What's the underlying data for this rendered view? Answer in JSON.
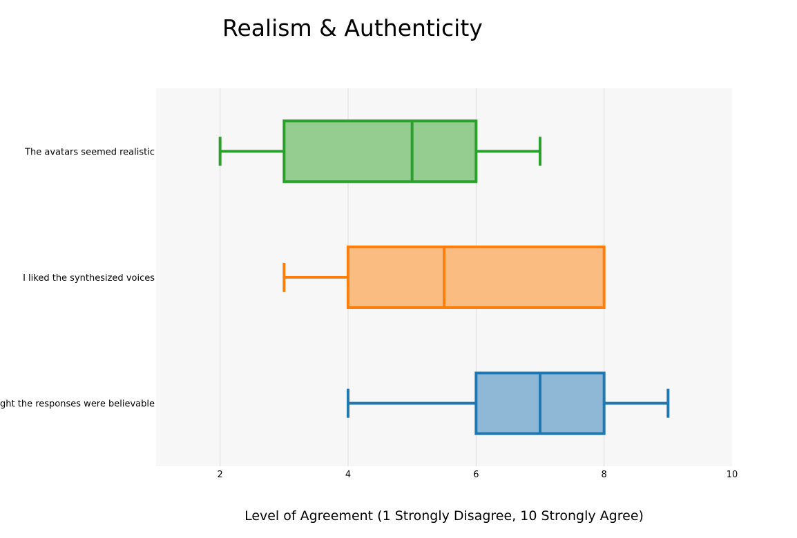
{
  "chart_data": {
    "type": "box",
    "orientation": "horizontal",
    "title": "Realism & Authenticity",
    "xlabel": "Level of Agreement (1 Strongly Disagree, 10 Strongly Agree)",
    "ylabel": "",
    "xlim": [
      1,
      10
    ],
    "x_ticks": [
      2,
      4,
      6,
      8,
      10
    ],
    "grid": "vertical",
    "legend": "none",
    "plot_background": "#f7f7f7",
    "series": [
      {
        "category": "The avatars seemed realistic",
        "color": "#2ca02c",
        "fill": "#94cd8f",
        "min": 2,
        "q1": 3,
        "median": 5,
        "q3": 6,
        "max": 7
      },
      {
        "category": "I liked the synthesized voices",
        "color": "#ff7f0e",
        "fill": "#fbbc82",
        "min": 3,
        "q1": 4,
        "median": 5.5,
        "q3": 8,
        "max": 8
      },
      {
        "category": "I thought the responses were believable",
        "color": "#1f77b4",
        "fill": "#8fb8d6",
        "min": 4,
        "q1": 6,
        "median": 7,
        "q3": 8,
        "max": 9
      }
    ]
  }
}
